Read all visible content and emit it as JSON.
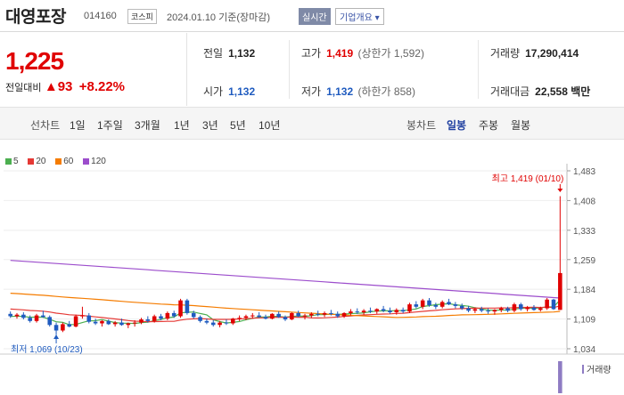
{
  "header": {
    "stock_name": "대영포장",
    "stock_code": "014160",
    "market": "코스피",
    "date_text": "2024.01.10 기준(장마감)",
    "realtime_label": "실시간",
    "company_info_label": "기업개요 ▾"
  },
  "price": {
    "current": "1,225",
    "change_label": "전일대비",
    "change_arrow": "▲",
    "change_value": "93",
    "change_pct": "+8.22%"
  },
  "stats": {
    "prev_close": {
      "label": "전일",
      "value": "1,132"
    },
    "high": {
      "label": "고가",
      "value": "1,419",
      "sub": "(상한가 1,592)"
    },
    "volume": {
      "label": "거래량",
      "value": "17,290,414"
    },
    "open": {
      "label": "시가",
      "value": "1,132"
    },
    "low": {
      "label": "저가",
      "value": "1,132",
      "sub": "(하한가 858)"
    },
    "trade_amount": {
      "label": "거래대금",
      "value": "22,558",
      "unit": "백만"
    }
  },
  "tabs": {
    "line_chart_label": "선차트",
    "line_periods": [
      "1일",
      "1주일",
      "3개월",
      "1년",
      "3년",
      "5년",
      "10년"
    ],
    "candle_chart_label": "봉차트",
    "candle_periods": [
      "일봉",
      "주봉",
      "월봉"
    ],
    "active_candle": "일봉"
  },
  "chart_data": {
    "type": "candlestick",
    "moving_averages": [
      {
        "name": "5",
        "color": "#4caf50"
      },
      {
        "name": "20",
        "color": "#e53935"
      },
      {
        "name": "60",
        "color": "#f57c00"
      },
      {
        "name": "120",
        "color": "#9c4dcc"
      }
    ],
    "y_ticks": [
      1483,
      1408,
      1333,
      1259,
      1184,
      1109,
      1034
    ],
    "ylim": [
      1034,
      1483
    ],
    "max_label": "최고 1,419 (01/10)",
    "min_label": "최저 1,069 (10/23)",
    "volume_label": "거래량",
    "up_color": "#e00000",
    "down_color": "#1f5bbf",
    "candles": [
      [
        1122,
        1128,
        1112,
        1116
      ],
      [
        1116,
        1124,
        1110,
        1120
      ],
      [
        1120,
        1126,
        1108,
        1112
      ],
      [
        1112,
        1118,
        1100,
        1104
      ],
      [
        1104,
        1122,
        1100,
        1118
      ],
      [
        1118,
        1130,
        1112,
        1114
      ],
      [
        1114,
        1118,
        1090,
        1094
      ],
      [
        1094,
        1100,
        1069,
        1080
      ],
      [
        1080,
        1100,
        1076,
        1096
      ],
      [
        1096,
        1104,
        1088,
        1090
      ],
      [
        1090,
        1120,
        1088,
        1116
      ],
      [
        1116,
        1140,
        1110,
        1118
      ],
      [
        1118,
        1124,
        1098,
        1102
      ],
      [
        1102,
        1110,
        1094,
        1098
      ],
      [
        1098,
        1106,
        1090,
        1104
      ],
      [
        1104,
        1108,
        1094,
        1096
      ],
      [
        1096,
        1104,
        1090,
        1100
      ],
      [
        1100,
        1110,
        1092,
        1094
      ],
      [
        1094,
        1100,
        1086,
        1098
      ],
      [
        1098,
        1106,
        1090,
        1100
      ],
      [
        1100,
        1112,
        1096,
        1108
      ],
      [
        1108,
        1116,
        1100,
        1104
      ],
      [
        1104,
        1120,
        1100,
        1116
      ],
      [
        1116,
        1122,
        1106,
        1110
      ],
      [
        1110,
        1128,
        1106,
        1124
      ],
      [
        1124,
        1130,
        1112,
        1116
      ],
      [
        1116,
        1160,
        1112,
        1156
      ],
      [
        1156,
        1160,
        1120,
        1124
      ],
      [
        1124,
        1130,
        1110,
        1114
      ],
      [
        1114,
        1118,
        1100,
        1104
      ],
      [
        1104,
        1110,
        1096,
        1100
      ],
      [
        1100,
        1106,
        1090,
        1094
      ],
      [
        1094,
        1104,
        1088,
        1100
      ],
      [
        1100,
        1108,
        1094,
        1098
      ],
      [
        1098,
        1112,
        1094,
        1110
      ],
      [
        1110,
        1118,
        1104,
        1112
      ],
      [
        1112,
        1120,
        1106,
        1116
      ],
      [
        1116,
        1124,
        1110,
        1118
      ],
      [
        1118,
        1126,
        1112,
        1114
      ],
      [
        1114,
        1120,
        1108,
        1110
      ],
      [
        1110,
        1124,
        1108,
        1122
      ],
      [
        1122,
        1128,
        1112,
        1114
      ],
      [
        1114,
        1118,
        1104,
        1108
      ],
      [
        1108,
        1126,
        1106,
        1124
      ],
      [
        1124,
        1130,
        1114,
        1116
      ],
      [
        1116,
        1122,
        1108,
        1118
      ],
      [
        1118,
        1126,
        1112,
        1122
      ],
      [
        1122,
        1130,
        1116,
        1120
      ],
      [
        1120,
        1128,
        1114,
        1124
      ],
      [
        1124,
        1132,
        1118,
        1122
      ],
      [
        1122,
        1128,
        1112,
        1116
      ],
      [
        1116,
        1126,
        1112,
        1124
      ],
      [
        1124,
        1134,
        1118,
        1128
      ],
      [
        1128,
        1136,
        1122,
        1126
      ],
      [
        1126,
        1134,
        1120,
        1130
      ],
      [
        1130,
        1138,
        1124,
        1128
      ],
      [
        1128,
        1136,
        1122,
        1134
      ],
      [
        1134,
        1142,
        1126,
        1130
      ],
      [
        1130,
        1138,
        1122,
        1126
      ],
      [
        1126,
        1136,
        1120,
        1132
      ],
      [
        1132,
        1138,
        1124,
        1128
      ],
      [
        1128,
        1150,
        1124,
        1146
      ],
      [
        1146,
        1154,
        1136,
        1140
      ],
      [
        1140,
        1160,
        1134,
        1156
      ],
      [
        1156,
        1162,
        1140,
        1144
      ],
      [
        1144,
        1150,
        1134,
        1140
      ],
      [
        1140,
        1156,
        1136,
        1152
      ],
      [
        1152,
        1160,
        1144,
        1146
      ],
      [
        1146,
        1152,
        1136,
        1142
      ],
      [
        1142,
        1148,
        1132,
        1136
      ],
      [
        1136,
        1142,
        1126,
        1130
      ],
      [
        1130,
        1138,
        1124,
        1134
      ],
      [
        1134,
        1140,
        1126,
        1130
      ],
      [
        1130,
        1136,
        1122,
        1128
      ],
      [
        1128,
        1134,
        1120,
        1132
      ],
      [
        1132,
        1140,
        1126,
        1136
      ],
      [
        1136,
        1140,
        1126,
        1130
      ],
      [
        1130,
        1150,
        1126,
        1146
      ],
      [
        1146,
        1150,
        1130,
        1134
      ],
      [
        1134,
        1142,
        1128,
        1138
      ],
      [
        1138,
        1144,
        1130,
        1132
      ],
      [
        1132,
        1140,
        1128,
        1136
      ],
      [
        1136,
        1162,
        1132,
        1158
      ],
      [
        1158,
        1160,
        1132,
        1134
      ],
      [
        1132,
        1419,
        1132,
        1225
      ]
    ],
    "volumes": [
      0,
      0,
      0,
      0,
      0,
      0,
      0,
      0,
      0,
      0,
      0,
      0,
      0,
      0,
      0,
      0,
      0,
      0,
      0,
      0,
      0,
      0,
      0,
      0,
      0,
      0,
      0,
      0,
      0,
      0,
      0,
      0,
      0,
      0,
      0,
      0,
      0,
      0,
      0,
      0,
      0,
      0,
      0,
      0,
      0,
      0,
      0,
      0,
      0,
      0,
      0,
      0,
      0,
      0,
      0,
      0,
      0,
      0,
      0,
      0,
      0,
      0,
      0,
      0,
      0,
      0,
      0,
      0,
      0,
      0,
      0,
      0,
      0,
      0,
      0,
      0,
      0,
      0,
      0,
      0,
      0,
      0,
      0,
      0,
      17290414
    ]
  }
}
